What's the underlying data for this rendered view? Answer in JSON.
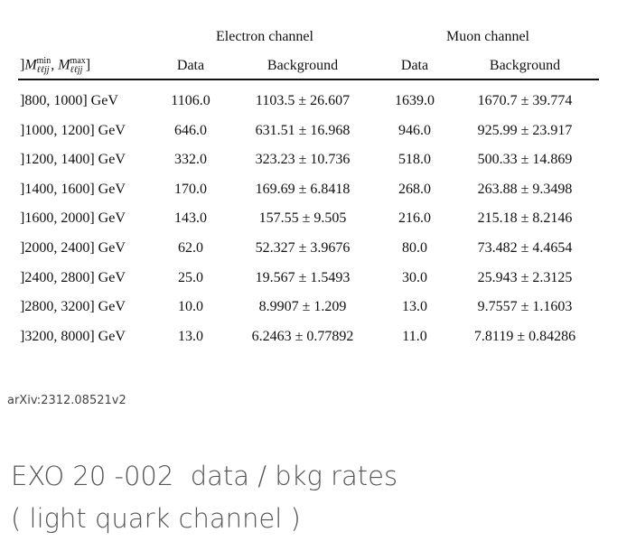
{
  "table": {
    "group_headers": [
      "Electron channel",
      "Muon channel"
    ],
    "range_header": [
      "]",
      "M",
      "min",
      "ℓℓjj",
      ", ",
      "M",
      "max",
      "ℓℓjj",
      "]"
    ],
    "columns": [
      "Data",
      "Background",
      "Data",
      "Background"
    ],
    "rows": [
      [
        "]800, 1000] GeV",
        "1106.0",
        "1103.5 ± 26.607",
        "1639.0",
        "1670.7 ± 39.774"
      ],
      [
        "]1000, 1200] GeV",
        "646.0",
        "631.51 ± 16.968",
        "946.0",
        "925.99 ± 23.917"
      ],
      [
        "]1200, 1400] GeV",
        "332.0",
        "323.23 ± 10.736",
        "518.0",
        "500.33 ± 14.869"
      ],
      [
        "]1400, 1600] GeV",
        "170.0",
        "169.69 ± 6.8418",
        "268.0",
        "263.88 ± 9.3498"
      ],
      [
        "]1600, 2000] GeV",
        "143.0",
        "157.55 ± 9.505",
        "216.0",
        "215.18 ± 8.2146"
      ],
      [
        "]2000, 2400] GeV",
        "62.0",
        "52.327 ± 3.9676",
        "80.0",
        "73.482 ± 4.4654"
      ],
      [
        "]2400, 2800] GeV",
        "25.0",
        "19.567 ± 1.5493",
        "30.0",
        "25.943 ± 2.3125"
      ],
      [
        "]2800, 3200] GeV",
        "10.0",
        "8.9907 ± 1.209",
        "13.0",
        "9.7557 ± 1.1603"
      ],
      [
        "]3200, 8000] GeV",
        "13.0",
        "6.2463 ± 0.77892",
        "11.0",
        "7.8119 ± 0.84286"
      ]
    ]
  },
  "source": "arXiv:2312.08521v2",
  "caption": [
    "EXO 20 -002  data / bkg rates",
    "( light quark channel )"
  ]
}
